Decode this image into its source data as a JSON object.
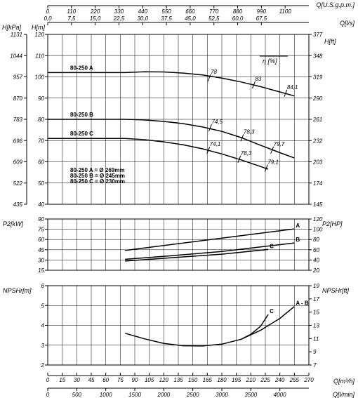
{
  "chart_data": {
    "type": "line",
    "top_axes": {
      "q_usgpm": {
        "label": "Q[U.S.g.p.m.]",
        "ticks": [
          "0",
          "110",
          "220",
          "330",
          "440",
          "550",
          "660",
          "770",
          "880",
          "990",
          "1100"
        ]
      },
      "q_ls": {
        "label": "Q[l/s]",
        "ticks": [
          "0,0",
          "7,5",
          "15,0",
          "22,5",
          "30,0",
          "37,5",
          "45,0",
          "52,5",
          "60,0",
          "67,5"
        ]
      }
    },
    "bottom_axes": {
      "q_m3h": {
        "label": "Q[m³/h]",
        "ticks": [
          "0",
          "15",
          "30",
          "45",
          "60",
          "75",
          "90",
          "105",
          "120",
          "135",
          "150",
          "165",
          "180",
          "195",
          "210",
          "225",
          "240",
          "255",
          "270"
        ]
      },
      "q_lmin": {
        "label": "Q[l/min]",
        "ticks": [
          "0",
          "500",
          "1000",
          "1500",
          "2000",
          "2500",
          "3000",
          "3500",
          "4000"
        ]
      }
    },
    "panels": [
      {
        "name": "head",
        "ylabel_left_kpa": "H[kPa]",
        "ylabel_left": "H[m]",
        "ylabel_right": "H[ft]",
        "efficiency_label": "η [%]",
        "ylim": [
          40,
          120
        ],
        "yticks": [
          "40",
          "50",
          "60",
          "70",
          "80",
          "90",
          "100",
          "110",
          "120"
        ],
        "kpa_ticks": [
          "435",
          "522",
          "609",
          "696",
          "783",
          "870",
          "957",
          "1044",
          "1131"
        ],
        "ft_ticks": [
          "145",
          "174",
          "203",
          "232",
          "261",
          "290",
          "319",
          "348",
          "377"
        ],
        "series": [
          {
            "name": "80-250 A",
            "points": [
              [
                0,
                102
              ],
              [
                80,
                102
              ],
              [
                100,
                102.4
              ],
              [
                120,
                102.3
              ],
              [
                140,
                101.8
              ],
              [
                160,
                100.9
              ],
              [
                180,
                99.4
              ],
              [
                200,
                97.6
              ],
              [
                220,
                95.4
              ],
              [
                240,
                92.9
              ],
              [
                255,
                91
              ]
            ]
          },
          {
            "name": "80-250 B",
            "points": [
              [
                0,
                80
              ],
              [
                80,
                80
              ],
              [
                100,
                79.7
              ],
              [
                120,
                79
              ],
              [
                140,
                78
              ],
              [
                160,
                76.4
              ],
              [
                180,
                74.3
              ],
              [
                200,
                71.4
              ],
              [
                220,
                67.8
              ],
              [
                240,
                64.3
              ],
              [
                255,
                61.8
              ]
            ]
          },
          {
            "name": "80-250 C",
            "points": [
              [
                0,
                71
              ],
              [
                80,
                71
              ],
              [
                100,
                70.4
              ],
              [
                120,
                69.4
              ],
              [
                140,
                68
              ],
              [
                160,
                66.1
              ],
              [
                180,
                63.7
              ],
              [
                200,
                60.9
              ],
              [
                220,
                57.8
              ],
              [
                228,
                56.5
              ]
            ]
          }
        ],
        "efficiency_marks": [
          {
            "label": "78",
            "q": 167,
            "h": 99.5
          },
          {
            "label": "83",
            "q": 213,
            "h": 96.2
          },
          {
            "label": "84,1",
            "q": 246,
            "h": 92.3
          },
          {
            "label": "74,5",
            "q": 168,
            "h": 76.0
          },
          {
            "label": "78,3",
            "q": 201,
            "h": 71.3
          },
          {
            "label": "79,7",
            "q": 232,
            "h": 65.5
          },
          {
            "label": "74,1",
            "q": 166,
            "h": 65.4
          },
          {
            "label": "78,3",
            "q": 198,
            "h": 61.2
          },
          {
            "label": "79,1",
            "q": 226,
            "h": 57.0
          }
        ],
        "impeller_notes": [
          "80-250 A = Ø 269mm",
          "80-250 B = Ø 245mm",
          "80-250 C = Ø 230mm"
        ]
      },
      {
        "name": "power",
        "ylabel_left": "P2[kW]",
        "ylabel_right": "P2[HP]",
        "ylim": [
          15,
          90
        ],
        "yticks": [
          "15",
          "30",
          "45",
          "60",
          "75",
          "90"
        ],
        "hp_ticks": [
          "20",
          "40",
          "60",
          "80",
          "100",
          "120"
        ],
        "series": [
          {
            "name": "A",
            "points": [
              [
                80,
                44
              ],
              [
                255,
                75.5
              ]
            ]
          },
          {
            "name": "B",
            "points": [
              [
                80,
                31
              ],
              [
                130,
                36.5
              ],
              [
                180,
                42.5
              ],
              [
                255,
                55
              ]
            ]
          },
          {
            "name": "C",
            "points": [
              [
                80,
                28.5
              ],
              [
                130,
                33.5
              ],
              [
                180,
                38.5
              ],
              [
                228,
                45.5
              ]
            ]
          }
        ]
      },
      {
        "name": "npshr",
        "ylabel_left": "NPSHr[m]",
        "ylabel_right": "NPSHr[ft]",
        "ylim": [
          2,
          6
        ],
        "yticks": [
          "2",
          "3",
          "4",
          "5",
          "6"
        ],
        "ft_ticks": [
          "7",
          "9",
          "11",
          "13",
          "15",
          "17",
          "19"
        ],
        "series": [
          {
            "name": "A - B",
            "points": [
              [
                80,
                3.6
              ],
              [
                100,
                3.32
              ],
              [
                120,
                3.09
              ],
              [
                140,
                2.97
              ],
              [
                160,
                2.96
              ],
              [
                180,
                3.05
              ],
              [
                200,
                3.3
              ],
              [
                220,
                3.75
              ],
              [
                240,
                4.35
              ],
              [
                255,
                4.95
              ]
            ]
          },
          {
            "name": "C",
            "points": [
              [
                200,
                3.3
              ],
              [
                210,
                3.55
              ],
              [
                220,
                3.95
              ],
              [
                228,
                4.55
              ]
            ]
          }
        ]
      }
    ],
    "xlim": [
      0,
      270
    ],
    "grid": true
  }
}
